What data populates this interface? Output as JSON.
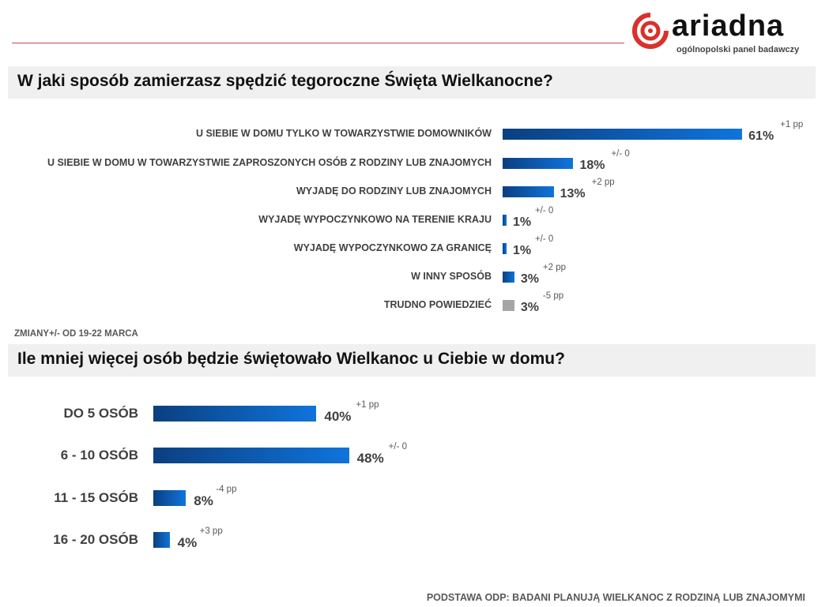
{
  "logo": {
    "name": "ariadna",
    "tagline": "ogólnopolski panel badawczy",
    "color": "#d9312b"
  },
  "footnote": "ZMIANY+/- OD 19-22 MARCA",
  "footer": "PODSTAWA ODP: BADANI PLANUJĄ WIELKANOC Z RODZINĄ LUB ZNAJOMYMI",
  "chart_data": [
    {
      "type": "bar",
      "orientation": "horizontal",
      "title": "W jaki sposób zamierzasz spędzić tegoroczne Święta Wielkanocne?",
      "categories": [
        "U SIEBIE W DOMU TYLKO W TOWARZYSTWIE DOMOWNIKÓW",
        "U SIEBIE W DOMU W TOWARZYSTWIE ZAPROSZONYCH OSÓB Z RODZINY LUB ZNAJOMYCH",
        "WYJADĘ DO RODZINY LUB ZNAJOMYCH",
        "WYJADĘ WYPOCZYNKOWO NA TERENIE KRAJU",
        "WYJADĘ WYPOCZYNKOWO ZA GRANICĘ",
        "W INNY SPOSÓB",
        "TRUDNO POWIEDZIEĆ"
      ],
      "values": [
        61,
        18,
        13,
        1,
        1,
        3,
        3
      ],
      "labels": [
        "61%",
        "18%",
        "13%",
        "1%",
        "1%",
        "3%",
        "3%"
      ],
      "changes": [
        "+1 pp",
        "+/- 0",
        "+2 pp",
        "+/- 0",
        "+/- 0",
        "+2 pp",
        "-5 pp"
      ],
      "colors": [
        "#0f74dc",
        "#0f74dc",
        "#0f74dc",
        "#0f74dc",
        "#0f74dc",
        "#0f74dc",
        "#a6a6a6"
      ]
    },
    {
      "type": "bar",
      "orientation": "horizontal",
      "title": "Ile mniej więcej osób będzie świętowało Wielkanoc u Ciebie w domu?",
      "categories": [
        "DO 5 OSÓB",
        "6 - 10 OSÓB",
        "11 - 15 OSÓB",
        "16 - 20 OSÓB"
      ],
      "values": [
        40,
        48,
        8,
        4
      ],
      "labels": [
        "40%",
        "48%",
        "8%",
        "4%"
      ],
      "changes": [
        "+1 pp",
        "+/- 0",
        "-4 pp",
        "+3 pp"
      ]
    }
  ]
}
